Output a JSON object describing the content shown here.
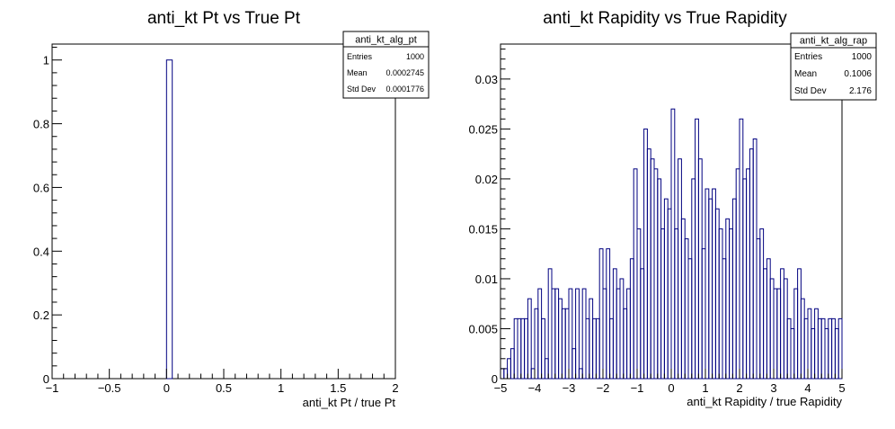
{
  "chart_data": [
    {
      "type": "histogram",
      "title": "anti_kt Pt vs True Pt",
      "xlabel": "anti_kt Pt / true Pt",
      "ylabel": "",
      "xlim": [
        -1,
        2
      ],
      "ylim": [
        0,
        1.05
      ],
      "x_ticks": [
        -1,
        -0.5,
        0,
        0.5,
        1,
        1.5,
        2
      ],
      "x_tick_labels": [
        "−1",
        "−0.5",
        "0",
        "0.5",
        "1",
        "1.5",
        "2"
      ],
      "y_ticks": [
        0,
        0.2,
        0.4,
        0.6,
        0.8,
        1
      ],
      "y_tick_labels": [
        "0",
        "0.2",
        "0.4",
        "0.6",
        "0.8",
        "1"
      ],
      "bin_width": 0.05,
      "bins": [
        {
          "x_low": 0.0,
          "x_high": 0.05,
          "value": 1.0
        }
      ],
      "line_color": "#000080",
      "stats": {
        "name": "anti_kt_alg_pt",
        "rows": [
          {
            "label": "Entries",
            "value": "1000"
          },
          {
            "label": "Mean",
            "value": "0.0002745"
          },
          {
            "label": "Std Dev",
            "value": "0.0001776"
          }
        ]
      }
    },
    {
      "type": "histogram",
      "title": "anti_kt Rapidity vs True Rapidity",
      "xlabel": "anti_kt Rapidity / true Rapidity",
      "ylabel": "",
      "xlim": [
        -5,
        5
      ],
      "ylim": [
        0,
        0.0335
      ],
      "x_ticks": [
        -5,
        -4,
        -3,
        -2,
        -1,
        0,
        1,
        2,
        3,
        4,
        5
      ],
      "x_tick_labels": [
        "−5",
        "−4",
        "−3",
        "−2",
        "−1",
        "0",
        "1",
        "2",
        "3",
        "4",
        "5"
      ],
      "y_ticks": [
        0,
        0.005,
        0.01,
        0.015,
        0.02,
        0.025,
        0.03
      ],
      "y_tick_labels": [
        "0",
        "0.005",
        "0.01",
        "0.015",
        "0.02",
        "0.025",
        "0.03"
      ],
      "x_start": -5,
      "bin_width": 0.1,
      "values": [
        0.001,
        0.001,
        0.002,
        0.003,
        0.006,
        0.006,
        0.006,
        0.006,
        0.008,
        0.001,
        0.007,
        0.009,
        0.006,
        0.002,
        0.011,
        0.009,
        0.009,
        0.008,
        0.007,
        0.007,
        0.009,
        0.003,
        0.009,
        0.001,
        0.009,
        0.006,
        0.008,
        0.006,
        0.006,
        0.013,
        0.009,
        0.013,
        0.006,
        0.011,
        0.009,
        0.01,
        0.007,
        0.009,
        0.012,
        0.021,
        0.015,
        0.011,
        0.025,
        0.023,
        0.022,
        0.021,
        0.02,
        0.015,
        0.018,
        0.017,
        0.027,
        0.015,
        0.022,
        0.016,
        0.014,
        0.012,
        0.02,
        0.026,
        0.022,
        0.013,
        0.019,
        0.018,
        0.019,
        0.017,
        0.015,
        0.012,
        0.016,
        0.015,
        0.018,
        0.021,
        0.026,
        0.02,
        0.021,
        0.023,
        0.024,
        0.014,
        0.015,
        0.011,
        0.012,
        0.01,
        0.009,
        0.009,
        0.011,
        0.01,
        0.006,
        0.005,
        0.009,
        0.011,
        0.008,
        0.006,
        0.007,
        0.005,
        0.007,
        0.006,
        0.006,
        0.005,
        0.006,
        0.006,
        0.005,
        0.006
      ],
      "line_color": "#000080",
      "stats": {
        "name": "anti_kt_alg_rap",
        "rows": [
          {
            "label": "Entries",
            "value": "1000"
          },
          {
            "label": "Mean",
            "value": "0.1006"
          },
          {
            "label": "Std Dev",
            "value": "2.176"
          }
        ]
      }
    }
  ]
}
